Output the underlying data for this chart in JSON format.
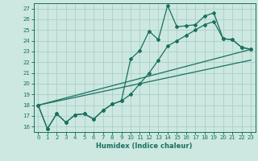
{
  "background_color": "#cce8e0",
  "grid_color": "#aacfc8",
  "line_color": "#1a7060",
  "xlabel": "Humidex (Indice chaleur)",
  "xlim": [
    -0.5,
    23.5
  ],
  "ylim": [
    15.5,
    27.5
  ],
  "xticks": [
    0,
    1,
    2,
    3,
    4,
    5,
    6,
    7,
    8,
    9,
    10,
    11,
    12,
    13,
    14,
    15,
    16,
    17,
    18,
    19,
    20,
    21,
    22,
    23
  ],
  "yticks": [
    16,
    17,
    18,
    19,
    20,
    21,
    22,
    23,
    24,
    25,
    26,
    27
  ],
  "series1_x": [
    0,
    1,
    2,
    3,
    4,
    5,
    6,
    7,
    8,
    9,
    10,
    11,
    12,
    13,
    14,
    15,
    16,
    17,
    18,
    19,
    20,
    21,
    22,
    23
  ],
  "series1_y": [
    18.0,
    15.8,
    17.2,
    16.4,
    17.1,
    17.2,
    16.7,
    17.5,
    18.1,
    18.4,
    22.3,
    23.1,
    24.9,
    24.1,
    27.3,
    25.3,
    25.4,
    25.5,
    26.3,
    26.6,
    24.2,
    24.1,
    23.4,
    23.2
  ],
  "series2_x": [
    0,
    1,
    2,
    3,
    4,
    5,
    6,
    7,
    8,
    9,
    10,
    11,
    12,
    13,
    14,
    15,
    16,
    17,
    18,
    19,
    20,
    21,
    22,
    23
  ],
  "series2_y": [
    18.0,
    15.8,
    17.2,
    16.4,
    17.1,
    17.2,
    16.7,
    17.5,
    18.1,
    18.4,
    19.0,
    20.0,
    21.0,
    22.2,
    23.5,
    24.0,
    24.5,
    25.0,
    25.5,
    25.8,
    24.2,
    24.1,
    23.4,
    23.2
  ],
  "line1_x": [
    0,
    23
  ],
  "line1_y": [
    18.0,
    22.2
  ],
  "line2_x": [
    0,
    23
  ],
  "line2_y": [
    18.0,
    22.2
  ]
}
